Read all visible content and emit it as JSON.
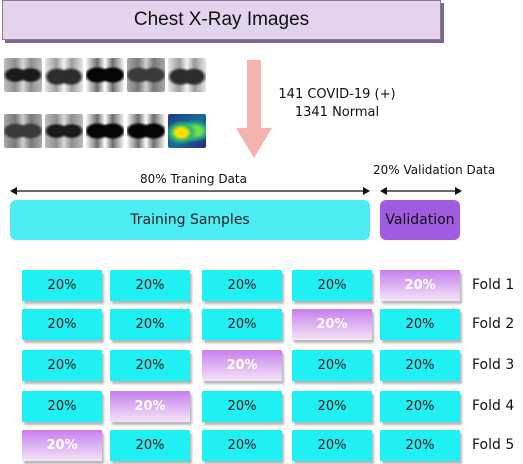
{
  "title": "Chest X-Ray Images",
  "xray_thumbnails": [
    {
      "icon": "chest-xray-image",
      "style": "a"
    },
    {
      "icon": "chest-xray-image",
      "style": "b"
    },
    {
      "icon": "chest-xray-image",
      "style": "c"
    },
    {
      "icon": "chest-xray-image",
      "style": "d"
    },
    {
      "icon": "chest-xray-image",
      "style": "b"
    },
    {
      "icon": "chest-xray-image",
      "style": "d"
    },
    {
      "icon": "chest-xray-image",
      "style": "a"
    },
    {
      "icon": "chest-xray-image",
      "style": "c"
    },
    {
      "icon": "chest-xray-image",
      "style": "c"
    },
    {
      "icon": "chest-xray-heatmap",
      "style": "heat"
    }
  ],
  "stats": {
    "covid": "141 COVID-19 (+)",
    "normal": "1341 Normal"
  },
  "split": {
    "train_label": "80% Traning Data",
    "val_label": "20% Validation Data",
    "train_band": "Training Samples",
    "val_band": "Validation"
  },
  "folds": [
    {
      "label": "Fold 1",
      "cells": [
        "20%",
        "20%",
        "20%",
        "20%",
        "20%"
      ],
      "test_index": 4
    },
    {
      "label": "Fold 2",
      "cells": [
        "20%",
        "20%",
        "20%",
        "20%",
        "20%"
      ],
      "test_index": 3
    },
    {
      "label": "Fold 3",
      "cells": [
        "20%",
        "20%",
        "20%",
        "20%",
        "20%"
      ],
      "test_index": 2
    },
    {
      "label": "Fold 4",
      "cells": [
        "20%",
        "20%",
        "20%",
        "20%",
        "20%"
      ],
      "test_index": 1
    },
    {
      "label": "Fold 5",
      "cells": [
        "20%",
        "20%",
        "20%",
        "20%",
        "20%"
      ],
      "test_index": 0
    }
  ],
  "colors": {
    "title_bg": "#e3d3ec",
    "train": "#1ff0f3",
    "train_band": "#4dedf3",
    "validation": "#a05ce0",
    "arrow": "#f4b3ae"
  }
}
